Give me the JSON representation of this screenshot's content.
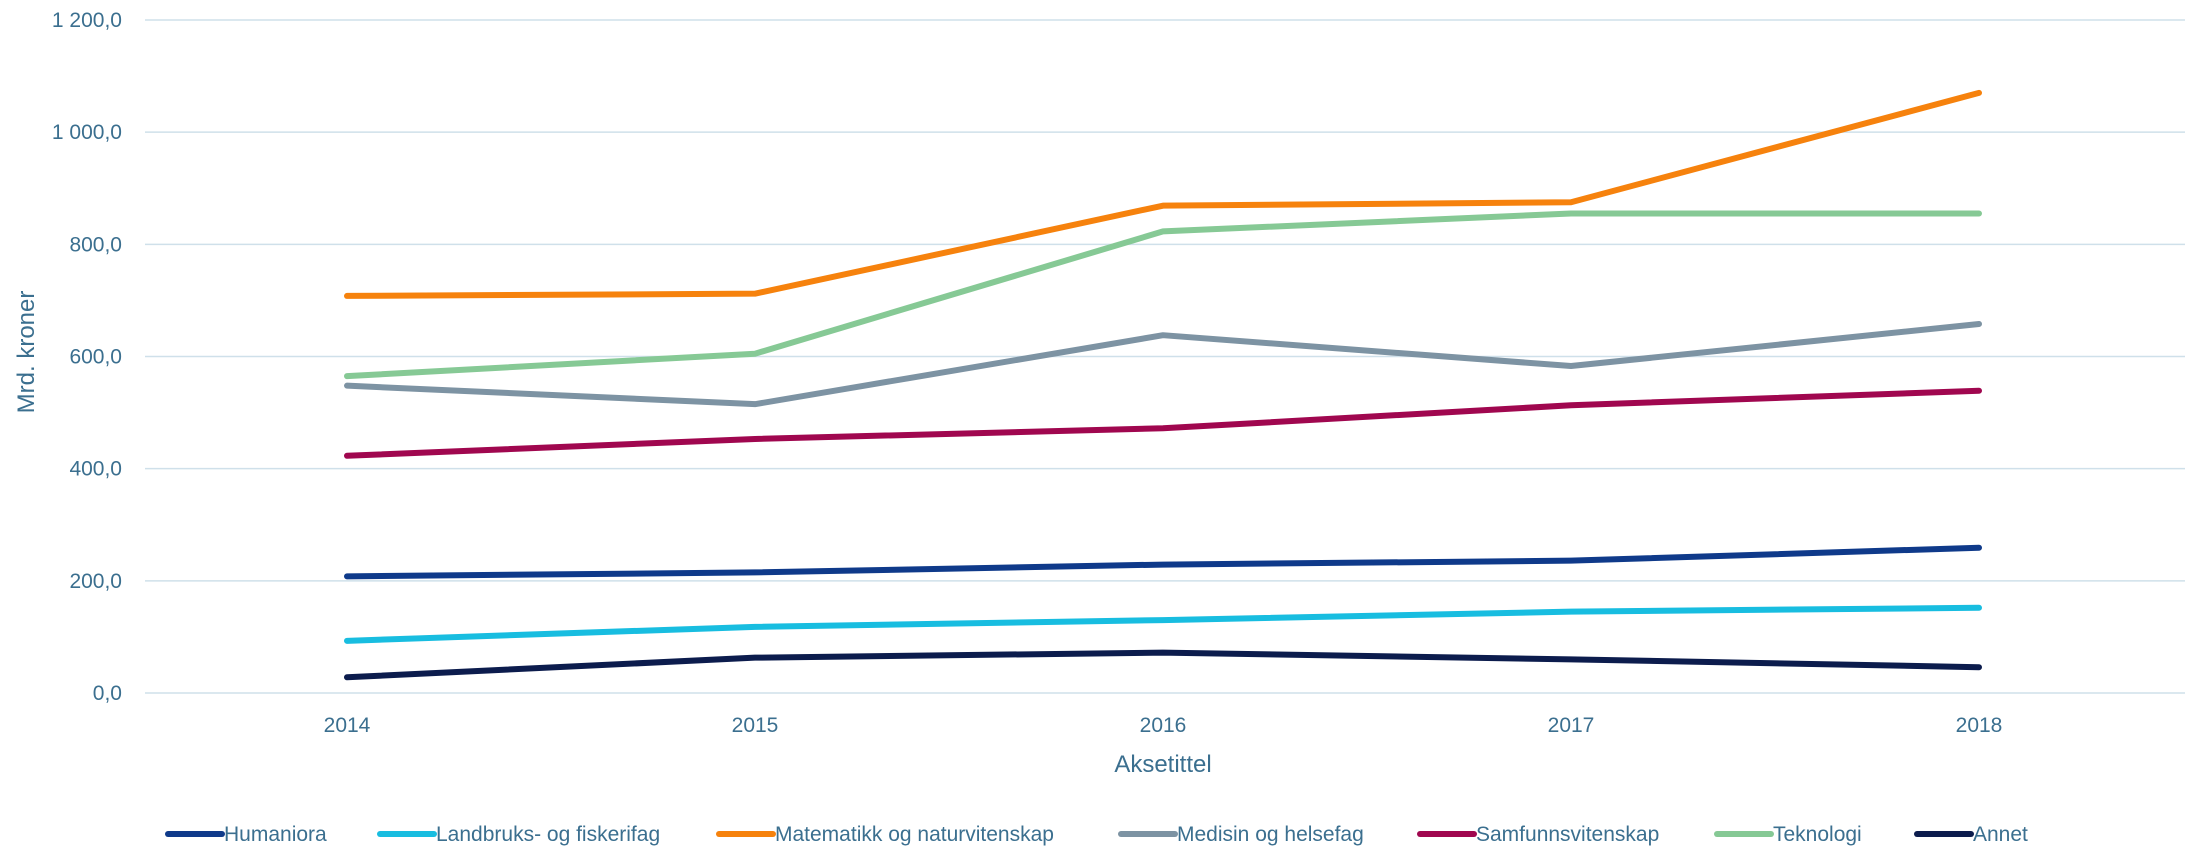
{
  "chart_data": {
    "type": "line",
    "title": "",
    "xlabel": "Aksetittel",
    "ylabel": "Mrd. kroner",
    "x": [
      "2014",
      "2015",
      "2016",
      "2017",
      "2018"
    ],
    "ylim": [
      0,
      1200
    ],
    "yticks": [
      0,
      200,
      400,
      600,
      800,
      1000,
      1200
    ],
    "ytick_labels": [
      "0,0",
      "200,0",
      "400,0",
      "600,0",
      "800,0",
      "1 000,0",
      "1 200,0"
    ],
    "grid": true,
    "legend_position": "bottom",
    "series": [
      {
        "name": "Humaniora",
        "color": "#0f3a8a",
        "values": [
          208,
          215,
          229,
          236,
          259
        ]
      },
      {
        "name": "Landbruks- og fiskerifag",
        "color": "#18bde0",
        "values": [
          93,
          118,
          130,
          145,
          152
        ]
      },
      {
        "name": "Matematikk og naturvitenskap",
        "color": "#f6820d",
        "values": [
          708,
          712,
          869,
          875,
          1070
        ]
      },
      {
        "name": "Medisin og helsefag",
        "color": "#7d93a3",
        "values": [
          548,
          515,
          638,
          583,
          658
        ]
      },
      {
        "name": "Samfunnsvitenskap",
        "color": "#a0074f",
        "values": [
          423,
          453,
          472,
          513,
          539
        ]
      },
      {
        "name": "Teknologi",
        "color": "#86c995",
        "values": [
          565,
          605,
          823,
          855,
          855
        ]
      },
      {
        "name": "Annet",
        "color": "#0c1c4d",
        "values": [
          28,
          63,
          72,
          60,
          46
        ]
      }
    ]
  }
}
